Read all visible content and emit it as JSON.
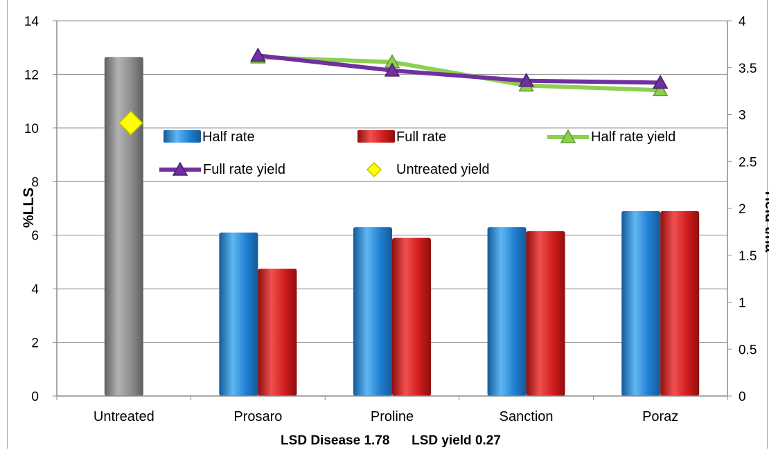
{
  "chart_data": {
    "type": "bar",
    "categories": [
      "Untreated",
      "Prosaro",
      "Proline",
      "Sanction",
      "Poraz"
    ],
    "ylabel": "%LLS",
    "y2label": "Yield t/ha",
    "ylim": [
      0,
      14
    ],
    "y2lim": [
      0,
      4
    ],
    "yticks": [
      "0",
      "2",
      "4",
      "6",
      "8",
      "10",
      "12",
      "14"
    ],
    "y2ticks": [
      "0",
      "0.5",
      "1",
      "1.5",
      "2",
      "2.5",
      "3",
      "3.5",
      "4"
    ],
    "footnote": "LSD Disease 1.78      LSD yield 0.27",
    "grid": "horizontal",
    "legend_position": "inside-top",
    "untreated_bar": {
      "category": "Untreated",
      "value": 12.65,
      "color": "#8c8c8c"
    },
    "series": [
      {
        "name": "Half rate",
        "kind": "bar",
        "color": "#1f7fd1",
        "values": [
          null,
          6.1,
          6.3,
          6.3,
          6.9
        ]
      },
      {
        "name": "Full rate",
        "kind": "bar",
        "color": "#d01c1c",
        "values": [
          null,
          4.75,
          5.9,
          6.15,
          6.9
        ]
      },
      {
        "name": "Half rate yield",
        "kind": "line",
        "axis": "right",
        "color": "#8cd050",
        "marker": "triangle",
        "values": [
          null,
          3.61,
          3.56,
          3.31,
          3.26
        ]
      },
      {
        "name": "Full rate yield",
        "kind": "line",
        "axis": "right",
        "color": "#7030a0",
        "marker": "triangle",
        "values": [
          null,
          3.63,
          3.47,
          3.36,
          3.34
        ]
      },
      {
        "name": "Untreated yield",
        "kind": "point",
        "axis": "right",
        "color": "#ffff00",
        "marker": "diamond",
        "values": [
          2.91,
          null,
          null,
          null,
          null
        ]
      }
    ]
  }
}
